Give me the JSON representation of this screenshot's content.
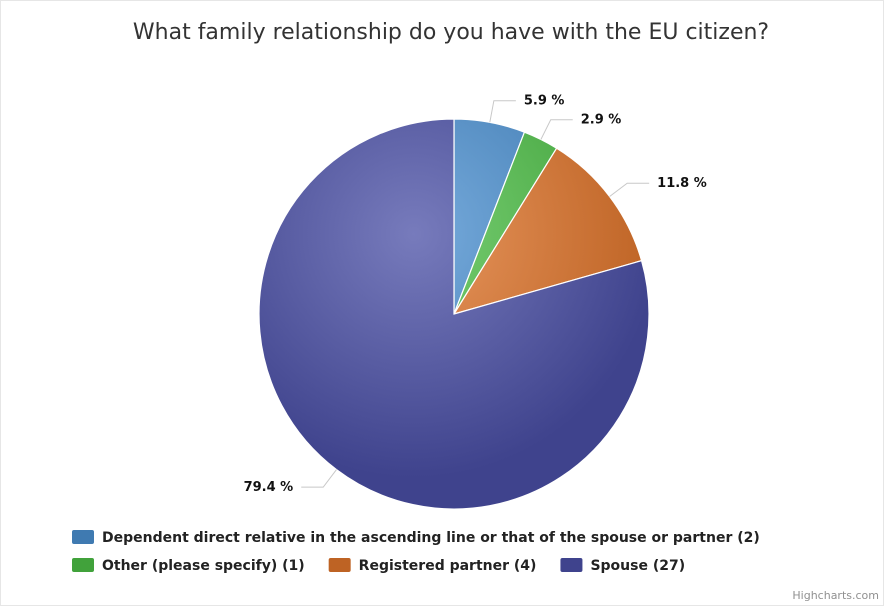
{
  "chart_data": {
    "type": "pie",
    "title": "What family relationship do you have with the EU citizen?",
    "slices": [
      {
        "name": "Dependent direct relative in the ascending line or that of the spouse or partner",
        "count": 2,
        "percent": 5.9,
        "percent_label": "5.9 %",
        "legend_label": "Dependent direct relative in the ascending line or that of the spouse or partner (2)",
        "color": "#4a8fd0"
      },
      {
        "name": "Other (please specify)",
        "count": 1,
        "percent": 2.9,
        "percent_label": "2.9 %",
        "legend_label": "Other (please specify) (1)",
        "color": "#4cbf45"
      },
      {
        "name": "Registered partner",
        "count": 4,
        "percent": 11.8,
        "percent_label": "11.8 %",
        "legend_label": "Registered partner (4)",
        "color": "#e0742a"
      },
      {
        "name": "Spouse",
        "count": 27,
        "percent": 79.4,
        "percent_label": "79.4 %",
        "legend_label": "Spouse (27)",
        "color": "#4a4fa6"
      }
    ],
    "legend_position": "bottom",
    "start_angle": "12 o'clock, clockwise"
  },
  "credits": "Highcharts.com"
}
